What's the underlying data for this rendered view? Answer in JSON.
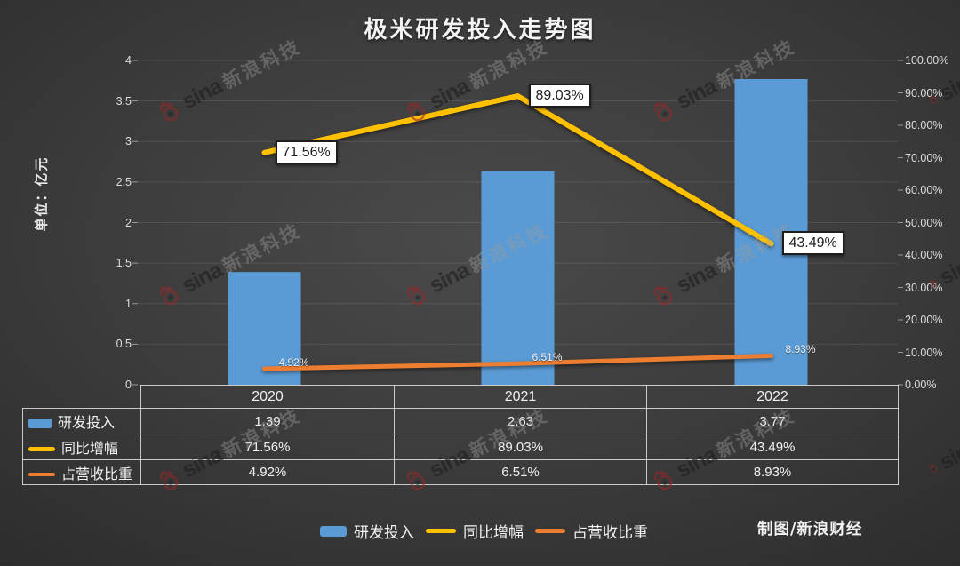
{
  "title": "极米研发投入走势图",
  "y_axis_title": "单位：亿元",
  "credit": "制图/新浪财经",
  "watermark": {
    "brand": "sina",
    "text": "新浪科技"
  },
  "colors": {
    "bar_blue": "#5b9bd5",
    "line_yellow": "#ffc000",
    "line_orange": "#ed7d31"
  },
  "chart_data": {
    "type": "bar",
    "subtype": "combo-bar-line",
    "title": "极米研发投入走势图",
    "ylabel": "单位：亿元",
    "categories": [
      "2020",
      "2021",
      "2022"
    ],
    "series": [
      {
        "name": "研发投入",
        "type": "bar",
        "axis": "left",
        "color": "#5b9bd5",
        "values": [
          1.39,
          2.63,
          3.77
        ]
      },
      {
        "name": "同比增幅",
        "type": "line",
        "axis": "right",
        "color": "#ffc000",
        "values": [
          71.56,
          89.03,
          43.49
        ],
        "labels": [
          "71.56%",
          "89.03%",
          "43.49%"
        ]
      },
      {
        "name": "占营收比重",
        "type": "line",
        "axis": "right",
        "color": "#ed7d31",
        "values": [
          4.92,
          6.51,
          8.93
        ],
        "labels": [
          "4.92%",
          "6.51%",
          "8.93%"
        ]
      }
    ],
    "left_axis": {
      "min": 0,
      "max": 4,
      "ticks": [
        "4",
        "3.5",
        "3",
        "2.5",
        "2",
        "1.5",
        "1",
        "0.5",
        "0"
      ]
    },
    "right_axis": {
      "min": 0,
      "max": 100,
      "ticks": [
        "100.00%",
        "90.00%",
        "80.00%",
        "70.00%",
        "60.00%",
        "50.00%",
        "40.00%",
        "30.00%",
        "20.00%",
        "10.00%",
        "0.00%"
      ]
    },
    "grid": "horizontal",
    "legend_position": "bottom"
  },
  "table": {
    "col_headers": [
      "2020",
      "2021",
      "2022"
    ],
    "rows": [
      {
        "label": "研发投入",
        "swatch": "bar",
        "color": "#5b9bd5",
        "values": [
          "1.39",
          "2.63",
          "3.77"
        ]
      },
      {
        "label": "同比增幅",
        "swatch": "line",
        "color": "#ffc000",
        "values": [
          "71.56%",
          "89.03%",
          "43.49%"
        ]
      },
      {
        "label": "占营收比重",
        "swatch": "line",
        "color": "#ed7d31",
        "values": [
          "4.92%",
          "6.51%",
          "8.93%"
        ]
      }
    ]
  },
  "legend": {
    "items": [
      {
        "label": "研发投入",
        "swatch": "bar",
        "color": "#5b9bd5"
      },
      {
        "label": "同比增幅",
        "swatch": "line",
        "color": "#ffc000"
      },
      {
        "label": "占营收比重",
        "swatch": "line",
        "color": "#ed7d31"
      }
    ]
  }
}
